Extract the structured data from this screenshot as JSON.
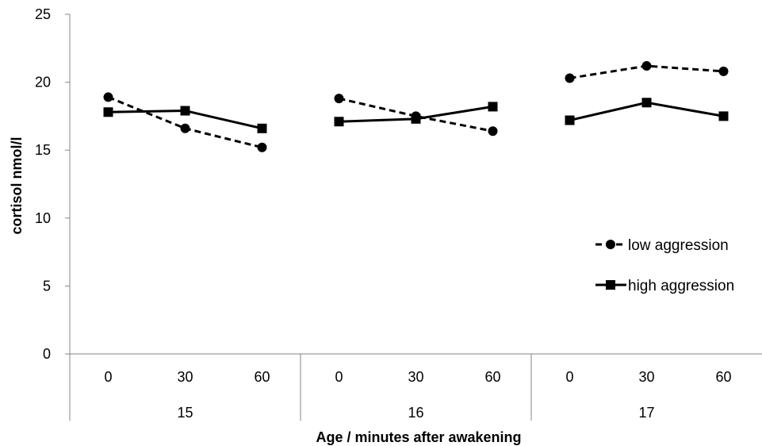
{
  "chart_data": {
    "type": "line",
    "ylabel": "cortisol nmol/l",
    "xlabel": "Age / minutes after awakening",
    "ylim": [
      0,
      25
    ],
    "yticks": [
      "0",
      "5",
      "10",
      "15",
      "20",
      "25"
    ],
    "groups": [
      {
        "label": "15",
        "x": [
          "0",
          "30",
          "60"
        ]
      },
      {
        "label": "16",
        "x": [
          "0",
          "30",
          "60"
        ]
      },
      {
        "label": "17",
        "x": [
          "0",
          "30",
          "60"
        ]
      }
    ],
    "series": [
      {
        "name": "low aggression",
        "style": "dashed",
        "marker": "circle",
        "values": [
          [
            18.9,
            16.6,
            15.2
          ],
          [
            18.8,
            17.5,
            16.4
          ],
          [
            20.3,
            21.2,
            20.8
          ]
        ]
      },
      {
        "name": "high aggression",
        "style": "solid",
        "marker": "square",
        "values": [
          [
            17.8,
            17.9,
            16.6
          ],
          [
            17.1,
            17.3,
            18.2
          ],
          [
            17.2,
            18.5,
            17.5
          ]
        ]
      }
    ],
    "legend_position": "right",
    "grid": false
  }
}
